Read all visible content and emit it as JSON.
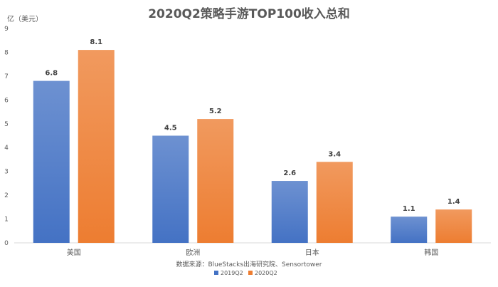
{
  "chart_data": {
    "type": "bar",
    "title": "2020Q2策略手游TOP100收入总和",
    "unit_label": "亿（美元）",
    "categories": [
      "美国",
      "欧洲",
      "日本",
      "韩国"
    ],
    "series": [
      {
        "name": "2019Q2",
        "values": [
          6.8,
          4.5,
          2.6,
          1.1
        ],
        "color": "#4472C4"
      },
      {
        "name": "2020Q2",
        "values": [
          8.1,
          5.2,
          3.4,
          1.4
        ],
        "color": "#ED7D31"
      }
    ],
    "ylim": [
      0,
      9
    ],
    "yticks": [
      "0",
      "1",
      "2",
      "3",
      "4",
      "5",
      "6",
      "7",
      "8",
      "9"
    ],
    "grid": false,
    "legend_position": "bottom",
    "source_note": "数据来源：BlueStacks出海研究院、Sensortower"
  }
}
